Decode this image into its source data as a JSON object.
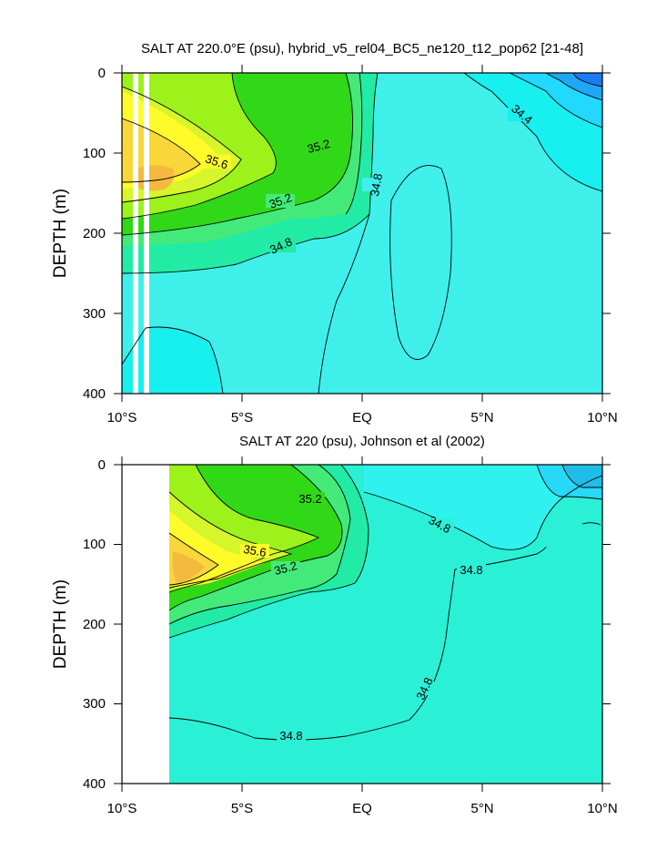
{
  "chart_data": [
    {
      "type": "contour",
      "title": "SALT AT 220.0°E (psu), hybrid_v5_rel04_BC5_ne120_t12_pop62 [21-48]",
      "xlabel": "",
      "ylabel": "DEPTH (m)",
      "x_ticks": [
        "10°S",
        "5°S",
        "EQ",
        "5°N",
        "10°N"
      ],
      "y_ticks": [
        "0",
        "100",
        "200",
        "300",
        "400"
      ],
      "xlim": [
        -10,
        10
      ],
      "ylim": [
        400,
        0
      ],
      "contour_labels": [
        "35.6",
        "35.2",
        "35.2",
        "34.8",
        "34.8",
        "34.4"
      ],
      "contour_levels": [
        34.4,
        34.8,
        35.2,
        35.6
      ]
    },
    {
      "type": "contour",
      "title": "SALT AT 220 (psu), Johnson et al (2002)",
      "xlabel": "",
      "ylabel": "DEPTH (m)",
      "x_ticks": [
        "10°S",
        "5°S",
        "EQ",
        "5°N",
        "10°N"
      ],
      "y_ticks": [
        "0",
        "100",
        "200",
        "300",
        "400"
      ],
      "xlim": [
        -10,
        10
      ],
      "ylim": [
        400,
        0
      ],
      "contour_labels": [
        "35.2",
        "35.6",
        "35.2",
        "34.8",
        "34.8",
        "34.8",
        "34.8"
      ],
      "contour_levels": [
        34.8,
        35.2,
        35.6
      ]
    }
  ]
}
